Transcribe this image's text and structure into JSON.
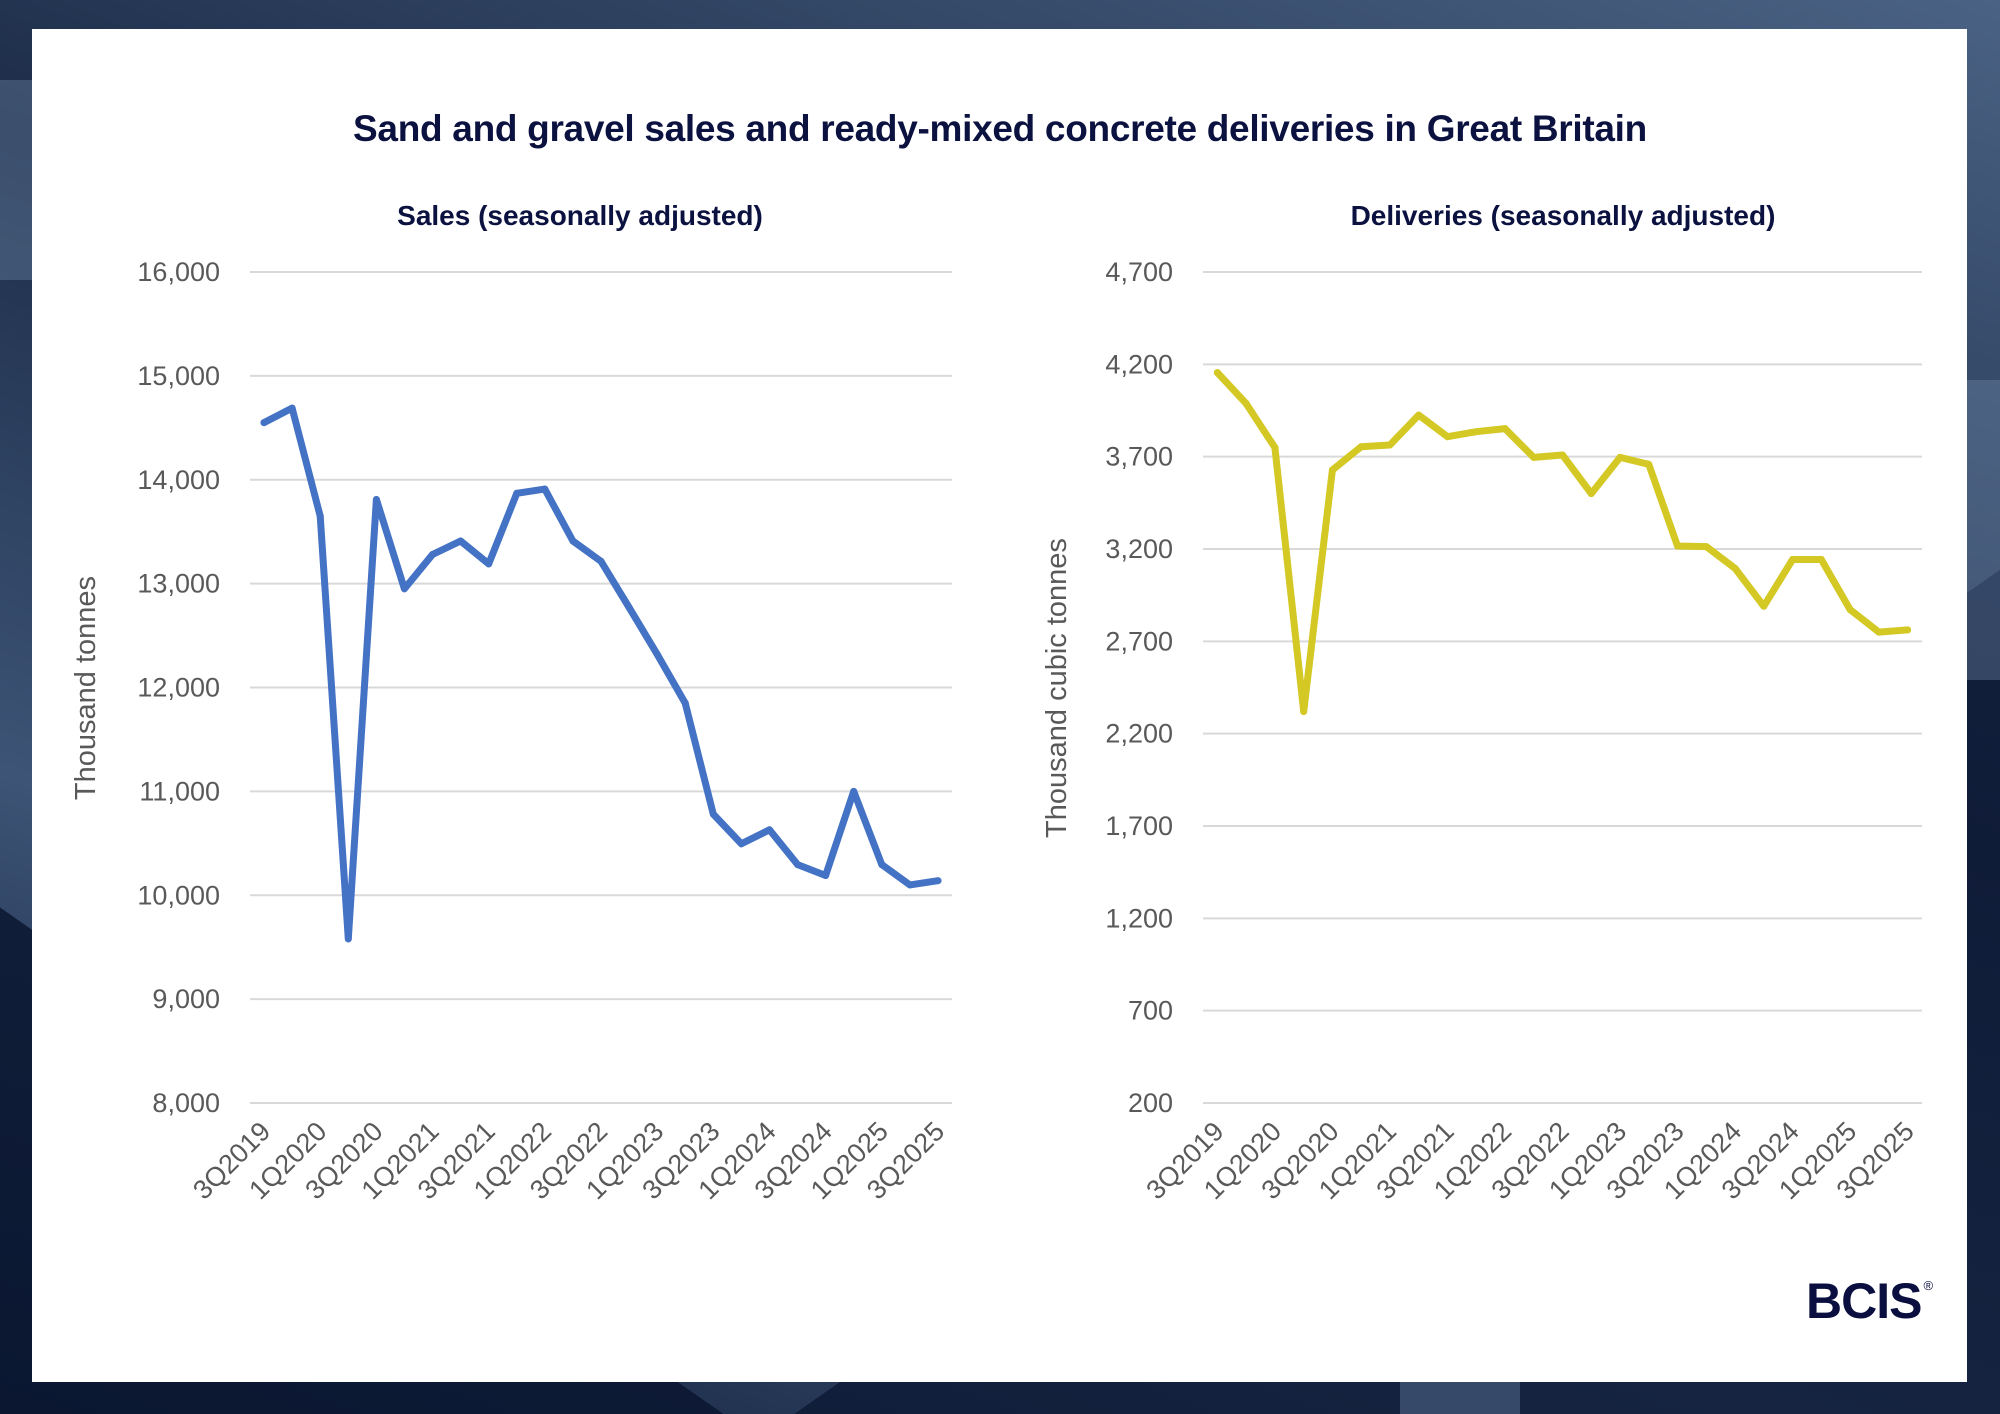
{
  "title": "Sand and gravel sales and ready-mixed concrete deliveries in Great Britain",
  "logo": {
    "text": "BCIS",
    "mark": "®"
  },
  "colors": {
    "sales_line": "#4472c4",
    "deliveries_line": "#d4c824",
    "title": "#0b1240",
    "grid": "#d9d9d9",
    "tick": "#595959"
  },
  "chart_data": [
    {
      "type": "line",
      "title": "Sales (seasonally adjusted)",
      "xlabel": "",
      "ylabel": "Thousand tonnes",
      "ylim": [
        8000,
        16000
      ],
      "yticks": [
        8000,
        9000,
        10000,
        11000,
        12000,
        13000,
        14000,
        15000,
        16000
      ],
      "ytick_labels": [
        "8,000",
        "9,000",
        "10,000",
        "11,000",
        "12,000",
        "13,000",
        "14,000",
        "15,000",
        "16,000"
      ],
      "grid": true,
      "x": [
        "3Q2019",
        "4Q2019",
        "1Q2020",
        "2Q2020",
        "3Q2020",
        "4Q2020",
        "1Q2021",
        "2Q2021",
        "3Q2021",
        "4Q2021",
        "1Q2022",
        "2Q2022",
        "3Q2022",
        "4Q2022",
        "1Q2023",
        "2Q2023",
        "3Q2023",
        "4Q2023",
        "1Q2024",
        "2Q2024",
        "3Q2024",
        "4Q2024",
        "1Q2025",
        "2Q2025",
        "3Q2025"
      ],
      "xtick_labels": [
        "3Q2019",
        "1Q2020",
        "3Q2020",
        "1Q2021",
        "3Q2021",
        "1Q2022",
        "3Q2022",
        "1Q2023",
        "3Q2023",
        "1Q2024",
        "3Q2024",
        "1Q2025",
        "3Q2025"
      ],
      "series": [
        {
          "name": "Sales",
          "color": "#4472c4",
          "values": [
            14550,
            14690,
            13650,
            9580,
            13810,
            12950,
            13280,
            13410,
            13190,
            13870,
            13910,
            13410,
            13215,
            12770,
            12320,
            11850,
            10780,
            10495,
            10630,
            10295,
            10190,
            11000,
            10295,
            10100,
            10140
          ]
        }
      ]
    },
    {
      "type": "line",
      "title": "Deliveries (seasonally adjusted)",
      "xlabel": "",
      "ylabel": "Thousand cubic tonnes",
      "ylim": [
        200,
        4700
      ],
      "yticks": [
        200,
        700,
        1200,
        1700,
        2200,
        2700,
        3200,
        3700,
        4200,
        4700
      ],
      "ytick_labels": [
        "200",
        "700",
        "1,200",
        "1,700",
        "2,200",
        "2,700",
        "3,200",
        "3,700",
        "4,200",
        "4,700"
      ],
      "grid": true,
      "x": [
        "3Q2019",
        "4Q2019",
        "1Q2020",
        "2Q2020",
        "3Q2020",
        "4Q2020",
        "1Q2021",
        "2Q2021",
        "3Q2021",
        "4Q2021",
        "1Q2022",
        "2Q2022",
        "3Q2022",
        "4Q2022",
        "1Q2023",
        "2Q2023",
        "3Q2023",
        "4Q2023",
        "1Q2024",
        "2Q2024",
        "3Q2024",
        "4Q2024",
        "1Q2025",
        "2Q2025",
        "3Q2025"
      ],
      "xtick_labels": [
        "3Q2019",
        "1Q2020",
        "3Q2020",
        "1Q2021",
        "3Q2021",
        "1Q2022",
        "3Q2022",
        "1Q2023",
        "3Q2023",
        "1Q2024",
        "3Q2024",
        "1Q2025",
        "3Q2025"
      ],
      "series": [
        {
          "name": "Deliveries",
          "color": "#d4c824",
          "values": [
            4155,
            3988,
            3749,
            2320,
            3628,
            3754,
            3763,
            3925,
            3808,
            3835,
            3852,
            3696,
            3709,
            3500,
            3696,
            3658,
            3216,
            3213,
            3095,
            2890,
            3143,
            3143,
            2872,
            2750,
            2762
          ]
        }
      ]
    }
  ]
}
